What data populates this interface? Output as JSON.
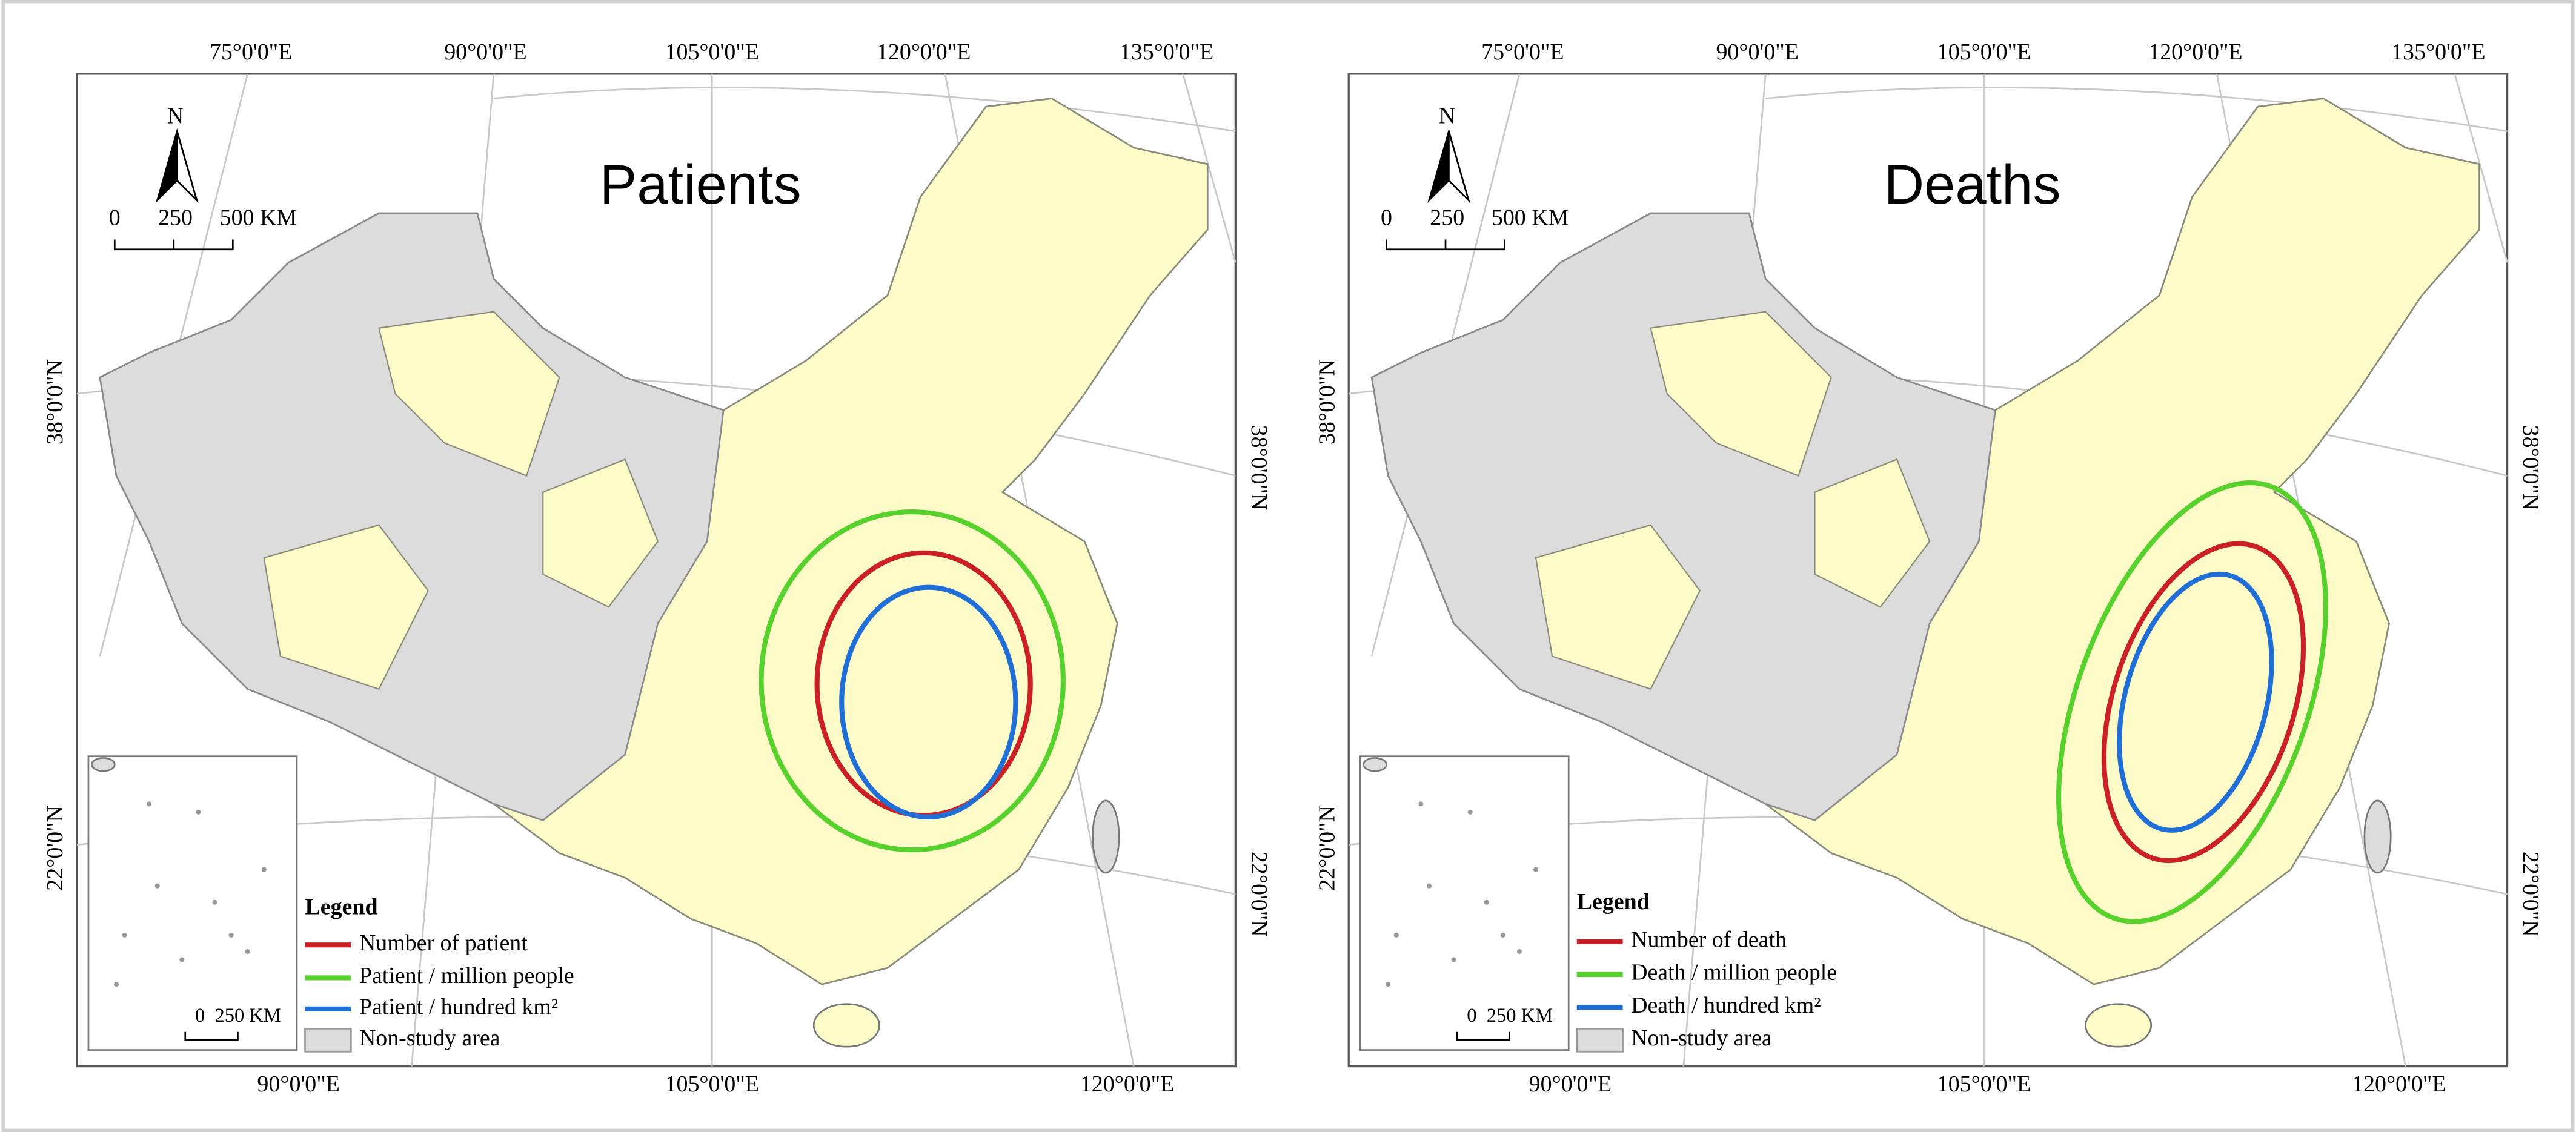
{
  "panels": [
    {
      "title": "Patients",
      "top_labels": [
        "75°0'0\"E",
        "90°0'0\"E",
        "105°0'0\"E",
        "120°0'0\"E",
        "135°0'0\"E"
      ],
      "bottom_labels": [
        "90°0'0\"E",
        "105°0'0\"E",
        "120°0'0\"E"
      ],
      "left_labels": [
        "38°0'0\"N",
        "22°0'0\"N"
      ],
      "right_labels": [
        "38°0'0\"N",
        "22°0'0\"N"
      ],
      "north": "N",
      "scale_labels": [
        "0",
        "250",
        "500 KM"
      ],
      "inset_scale_labels": [
        "0",
        "250 KM"
      ],
      "legend": {
        "title": "Legend",
        "items": [
          "Number of patient",
          "Patient / million people",
          "Patient / hundred km²",
          "Non-study area"
        ]
      }
    },
    {
      "title": "Deaths",
      "top_labels": [
        "75°0'0\"E",
        "90°0'0\"E",
        "105°0'0\"E",
        "120°0'0\"E",
        "135°0'0\"E"
      ],
      "bottom_labels": [
        "90°0'0\"E",
        "105°0'0\"E",
        "120°0'0\"E"
      ],
      "left_labels": [
        "38°0'0\"N",
        "22°0'0\"N"
      ],
      "right_labels": [
        "38°0'0\"N",
        "22°0'0\"N"
      ],
      "north": "N",
      "scale_labels": [
        "0",
        "250",
        "500 KM"
      ],
      "inset_scale_labels": [
        "0",
        "250 KM"
      ],
      "legend": {
        "title": "Legend",
        "items": [
          "Number of death",
          "Death / million people",
          "Death / hundred km²",
          "Non-study area"
        ]
      }
    }
  ]
}
